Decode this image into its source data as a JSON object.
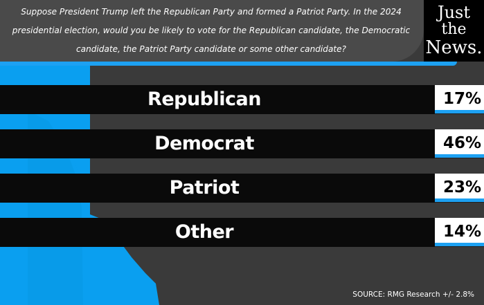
{
  "header": {
    "question_lines": [
      "Suppose President Trump left the Republican Party and formed a Patriot Party.  In the 2024",
      "presidential election, would you be likely to vote for the Republican candidate, the Democratic",
      "candidate, the Patriot Party candidate or some other candidate?"
    ]
  },
  "logo": {
    "line1": "Just",
    "line2": "the",
    "line3": "News."
  },
  "colors": {
    "accent_blue": "#1da1f2",
    "background_blue": "#0a9ff0",
    "bar_black": "#0a0a0a",
    "panel_gray": "#4a4a4a"
  },
  "chart_data": {
    "type": "bar",
    "orientation": "horizontal",
    "categories": [
      "Republican",
      "Democrat",
      "Patriot",
      "Other"
    ],
    "values": [
      17,
      46,
      23,
      14
    ],
    "value_labels": [
      "17%",
      "46%",
      "23%",
      "14%"
    ],
    "unit": "%",
    "title": "",
    "xlabel": "",
    "ylabel": "",
    "grid": false,
    "legend": "none"
  },
  "source": "SOURCE: RMG Research +/- 2.8%"
}
